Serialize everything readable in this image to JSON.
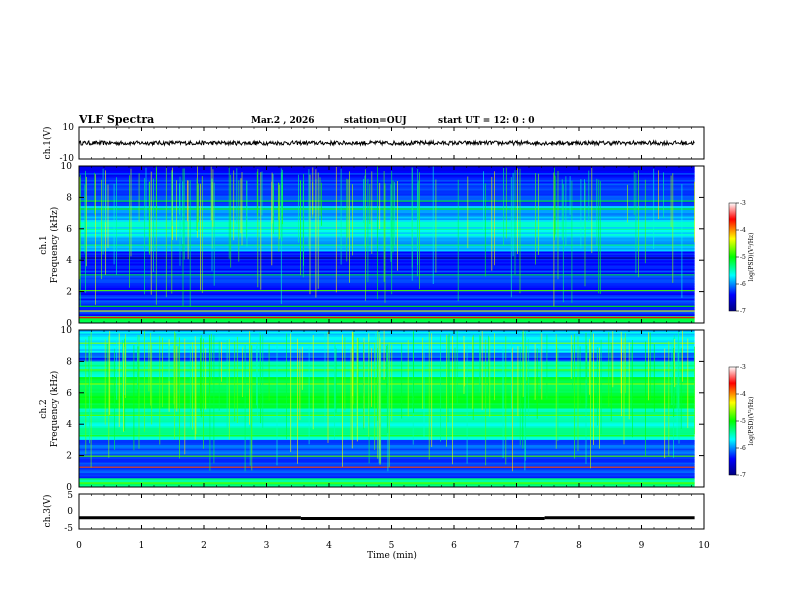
{
  "header": {
    "title": "VLF Spectra",
    "date": "Mar.2 , 2026",
    "station": "station=OUJ",
    "start": "start UT =  12: 0  : 0"
  },
  "colors": {
    "spectrogram_background": "#0a1a8c",
    "trace": "#000000",
    "frame": "#000000"
  },
  "chart_data": [
    {
      "type": "line",
      "name": "ch1-waveform",
      "ylabel": "ch.1(V)",
      "ylim": [
        -10,
        10
      ],
      "yticks": [
        "10",
        "-10"
      ],
      "xlim": [
        0,
        10
      ],
      "series": [
        {
          "name": "ch.1",
          "level": 0,
          "noise": 1.3
        }
      ]
    },
    {
      "type": "heatmap",
      "name": "ch1-spectrogram",
      "ylabel_line1": "ch.1",
      "ylabel_line2": "Frequency (kHz)",
      "ylim": [
        0,
        10
      ],
      "yticks": [
        "0",
        "2",
        "4",
        "6",
        "8",
        "10"
      ],
      "xlim": [
        0,
        10
      ],
      "colorbar": {
        "label": "log(PSD)(V²/Hz)",
        "range": [
          -7,
          -3
        ],
        "ticks": [
          "-3",
          "-4",
          "-5",
          "-6",
          "-7"
        ]
      }
    },
    {
      "type": "heatmap",
      "name": "ch2-spectrogram",
      "ylabel_line1": "ch.2",
      "ylabel_line2": "Frequency (kHz)",
      "ylim": [
        0,
        10
      ],
      "yticks": [
        "0",
        "2",
        "4",
        "6",
        "8",
        "10"
      ],
      "xlim": [
        0,
        10
      ],
      "colorbar": {
        "label": "log(PSD)(V²/Hz)",
        "range": [
          -7,
          -3
        ],
        "ticks": [
          "-3",
          "-4",
          "-5",
          "-6",
          "-7"
        ]
      }
    },
    {
      "type": "line",
      "name": "ch3-waveform",
      "ylabel": "ch.3(V)",
      "ylim": [
        -5,
        5
      ],
      "yticks": [
        "5",
        "0",
        "-5"
      ],
      "xlim": [
        0,
        10
      ],
      "series": [
        {
          "name": "ch.3",
          "level": -1.8,
          "segments": [
            [
              0,
              3.55,
              -1.8
            ],
            [
              3.55,
              7.45,
              -2.0
            ],
            [
              7.45,
              9.85,
              -1.8
            ]
          ]
        }
      ]
    }
  ],
  "x_axis": {
    "label": "Time (min)",
    "ticks": [
      "0",
      "1",
      "2",
      "3",
      "4",
      "5",
      "6",
      "7",
      "8",
      "9",
      "10"
    ],
    "data_end": 9.85
  }
}
